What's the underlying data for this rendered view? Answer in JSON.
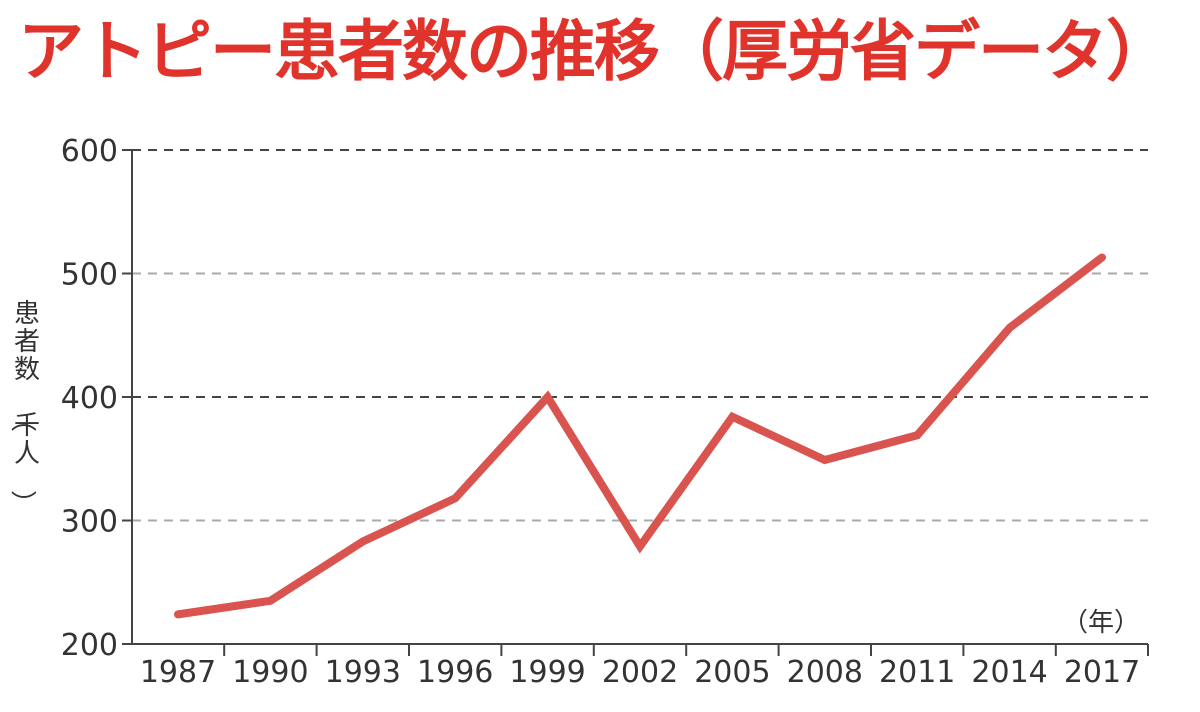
{
  "title": "アトピー患者数の推移（厚労省データ）",
  "chart_data": {
    "type": "line",
    "x": [
      "1987",
      "1990",
      "1993",
      "1996",
      "1999",
      "2002",
      "2005",
      "2008",
      "2011",
      "2014",
      "2017"
    ],
    "series": [
      {
        "values": [
          224,
          235,
          283,
          318,
          400,
          279,
          384,
          349,
          369,
          456,
          513
        ]
      }
    ],
    "ylabel": "患者数（千人）",
    "xunit": "（年）",
    "ylim": [
      200,
      600
    ],
    "yticks": [
      200,
      300,
      400,
      500,
      600
    ],
    "grid": true,
    "colors": {
      "line": "#d9534f",
      "title": "#e0332b"
    }
  }
}
